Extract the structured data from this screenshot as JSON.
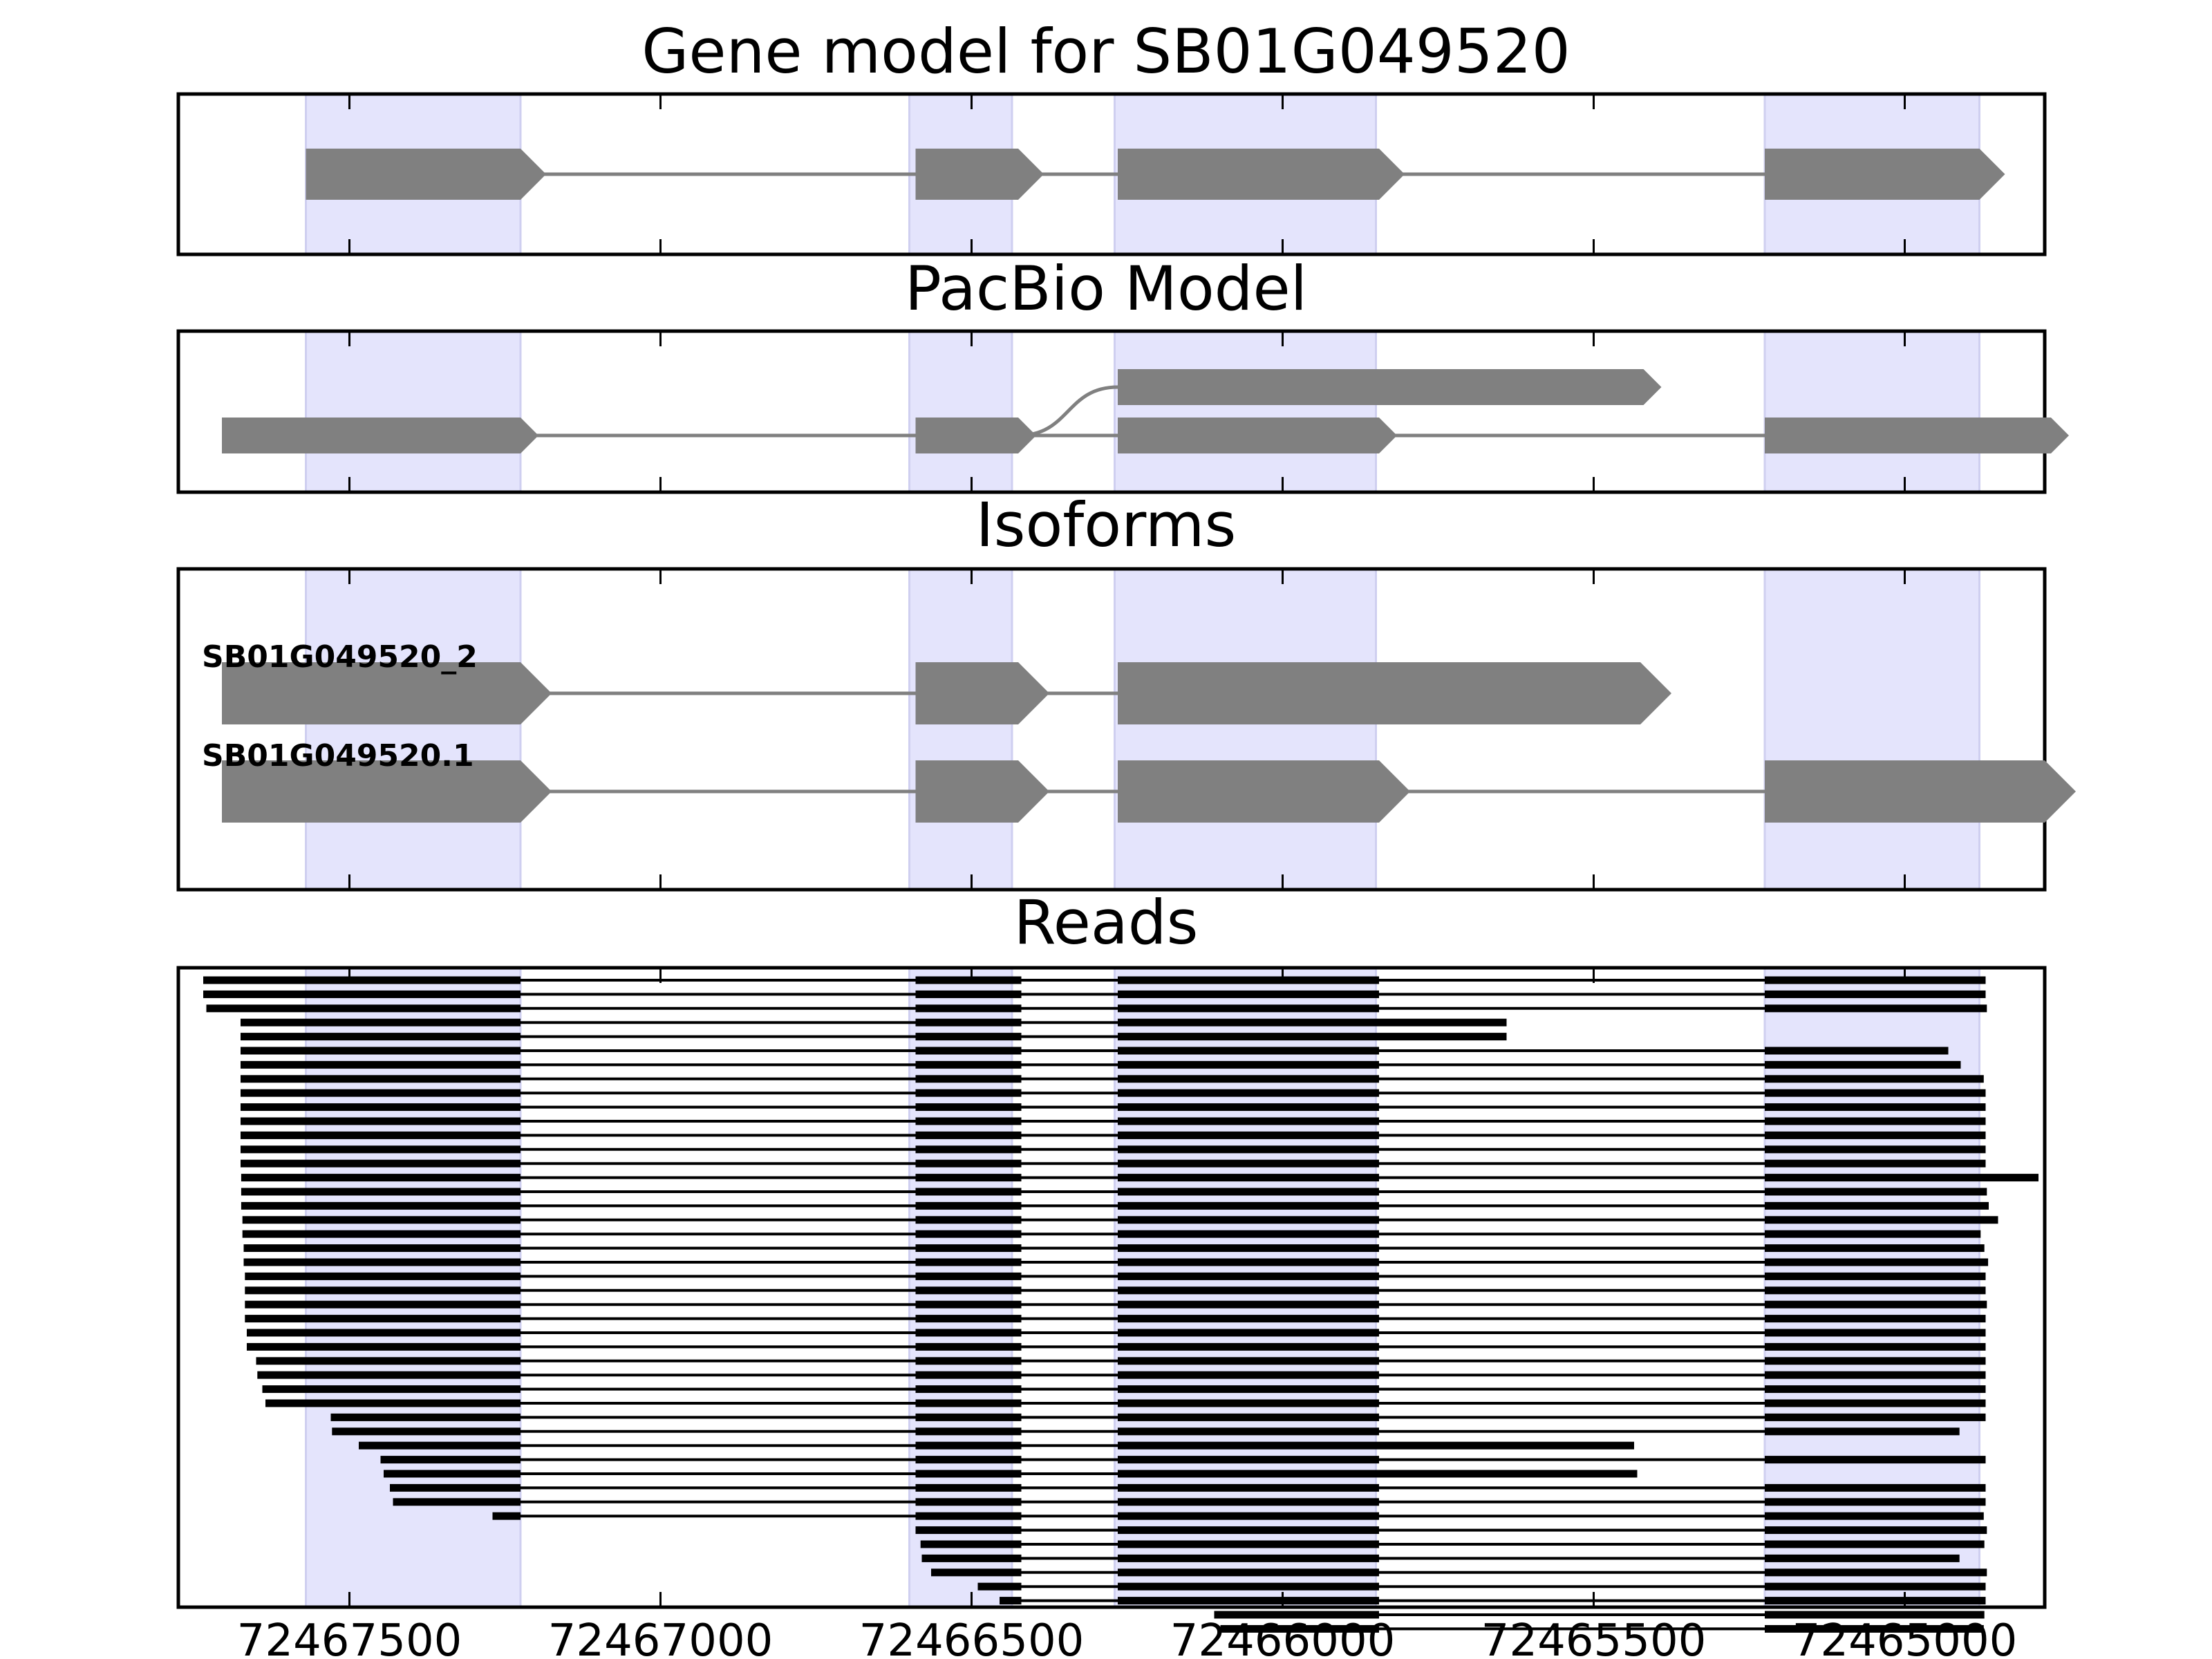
{
  "chart_data": [
    {
      "type": "gene-model",
      "title": "Gene model for SB01G049520",
      "exons": [
        [
          72467570,
          72467225
        ],
        [
          72466590,
          72466425
        ],
        [
          72466265,
          72465845
        ],
        [
          72465225,
          72464880
        ]
      ],
      "introns": [
        [
          72467225,
          72466590
        ],
        [
          72466425,
          72466265
        ],
        [
          72465845,
          72465225
        ]
      ]
    },
    {
      "type": "gene-model",
      "title": "PacBio Model",
      "tracks": [
        {
          "exons": [
            [
              72466265,
              72465420
            ]
          ],
          "join_from": 72466425
        },
        {
          "exons": [
            [
              72467705,
              72467225
            ],
            [
              72466590,
              72466425
            ],
            [
              72466265,
              72465845
            ],
            [
              72465225,
              72464765
            ]
          ]
        }
      ]
    },
    {
      "type": "gene-model",
      "title": "Isoforms",
      "isoforms": [
        {
          "name": "SB01G049520_2",
          "exons": [
            [
              72467705,
              72467225
            ],
            [
              72466590,
              72466425
            ],
            [
              72466265,
              72465425
            ]
          ]
        },
        {
          "name": "SB01G049520.1",
          "exons": [
            [
              72467705,
              72467225
            ],
            [
              72466590,
              72466425
            ],
            [
              72466265,
              72465845
            ],
            [
              72465225,
              72464775
            ]
          ]
        }
      ]
    },
    {
      "type": "reads",
      "title": "Reads",
      "note": "each read = list of aligned blocks [start, end] in genomic coordinates",
      "reads": [
        [
          [
            72467735,
            72467225
          ],
          [
            72466590,
            72466420
          ],
          [
            72466265,
            72465845
          ],
          [
            72465225,
            72464870
          ]
        ],
        [
          [
            72467735,
            72467225
          ],
          [
            72466590,
            72466420
          ],
          [
            72466265,
            72465845
          ],
          [
            72465225,
            72464870
          ]
        ],
        [
          [
            72467730,
            72467225
          ],
          [
            72466590,
            72466420
          ],
          [
            72466265,
            72465845
          ],
          [
            72465225,
            72464868
          ]
        ],
        [
          [
            72467675,
            72467225
          ],
          [
            72466590,
            72466420
          ],
          [
            72466265,
            72465640
          ]
        ],
        [
          [
            72467675,
            72467225
          ],
          [
            72466590,
            72466420
          ],
          [
            72466265,
            72465640
          ]
        ],
        [
          [
            72467675,
            72467225
          ],
          [
            72466590,
            72466420
          ],
          [
            72466265,
            72465845
          ],
          [
            72465225,
            72464930
          ]
        ],
        [
          [
            72467675,
            72467225
          ],
          [
            72466590,
            72466420
          ],
          [
            72466265,
            72465845
          ],
          [
            72465225,
            72464910
          ]
        ],
        [
          [
            72467675,
            72467225
          ],
          [
            72466590,
            72466420
          ],
          [
            72466265,
            72465845
          ],
          [
            72465225,
            72464873
          ]
        ],
        [
          [
            72467675,
            72467225
          ],
          [
            72466590,
            72466420
          ],
          [
            72466265,
            72465845
          ],
          [
            72465225,
            72464870
          ]
        ],
        [
          [
            72467675,
            72467225
          ],
          [
            72466590,
            72466420
          ],
          [
            72466265,
            72465845
          ],
          [
            72465225,
            72464870
          ]
        ],
        [
          [
            72467675,
            72467225
          ],
          [
            72466590,
            72466420
          ],
          [
            72466265,
            72465845
          ],
          [
            72465225,
            72464870
          ]
        ],
        [
          [
            72467675,
            72467225
          ],
          [
            72466590,
            72466420
          ],
          [
            72466265,
            72465845
          ],
          [
            72465225,
            72464870
          ]
        ],
        [
          [
            72467675,
            72467225
          ],
          [
            72466590,
            72466420
          ],
          [
            72466265,
            72465845
          ],
          [
            72465225,
            72464870
          ]
        ],
        [
          [
            72467675,
            72467225
          ],
          [
            72466590,
            72466420
          ],
          [
            72466265,
            72465845
          ],
          [
            72465225,
            72464870
          ]
        ],
        [
          [
            72467674,
            72467225
          ],
          [
            72466590,
            72466420
          ],
          [
            72466265,
            72465845
          ],
          [
            72465225,
            72464785
          ]
        ],
        [
          [
            72467674,
            72467225
          ],
          [
            72466590,
            72466420
          ],
          [
            72466265,
            72465845
          ],
          [
            72465225,
            72464868
          ]
        ],
        [
          [
            72467674,
            72467225
          ],
          [
            72466590,
            72466420
          ],
          [
            72466265,
            72465845
          ],
          [
            72465225,
            72464865
          ]
        ],
        [
          [
            72467672,
            72467225
          ],
          [
            72466590,
            72466420
          ],
          [
            72466265,
            72465845
          ],
          [
            72465225,
            72464850
          ]
        ],
        [
          [
            72467672,
            72467225
          ],
          [
            72466590,
            72466420
          ],
          [
            72466265,
            72465845
          ],
          [
            72465225,
            72464878
          ]
        ],
        [
          [
            72467670,
            72467225
          ],
          [
            72466590,
            72466420
          ],
          [
            72466265,
            72465845
          ],
          [
            72465225,
            72464872
          ]
        ],
        [
          [
            72467670,
            72467225
          ],
          [
            72466590,
            72466420
          ],
          [
            72466265,
            72465845
          ],
          [
            72465225,
            72464866
          ]
        ],
        [
          [
            72467668,
            72467225
          ],
          [
            72466590,
            72466420
          ],
          [
            72466265,
            72465845
          ],
          [
            72465225,
            72464870
          ]
        ],
        [
          [
            72467668,
            72467225
          ],
          [
            72466590,
            72466420
          ],
          [
            72466265,
            72465845
          ],
          [
            72465225,
            72464870
          ]
        ],
        [
          [
            72467668,
            72467225
          ],
          [
            72466590,
            72466420
          ],
          [
            72466265,
            72465845
          ],
          [
            72465225,
            72464868
          ]
        ],
        [
          [
            72467668,
            72467225
          ],
          [
            72466590,
            72466420
          ],
          [
            72466265,
            72465845
          ],
          [
            72465225,
            72464870
          ]
        ],
        [
          [
            72467665,
            72467225
          ],
          [
            72466590,
            72466420
          ],
          [
            72466265,
            72465845
          ],
          [
            72465225,
            72464870
          ]
        ],
        [
          [
            72467665,
            72467225
          ],
          [
            72466590,
            72466420
          ],
          [
            72466265,
            72465845
          ],
          [
            72465225,
            72464870
          ]
        ],
        [
          [
            72467650,
            72467225
          ],
          [
            72466590,
            72466420
          ],
          [
            72466265,
            72465845
          ],
          [
            72465225,
            72464870
          ]
        ],
        [
          [
            72467648,
            72467225
          ],
          [
            72466590,
            72466420
          ],
          [
            72466265,
            72465845
          ],
          [
            72465225,
            72464870
          ]
        ],
        [
          [
            72467640,
            72467225
          ],
          [
            72466590,
            72466420
          ],
          [
            72466265,
            72465845
          ],
          [
            72465225,
            72464870
          ]
        ],
        [
          [
            72467635,
            72467225
          ],
          [
            72466590,
            72466420
          ],
          [
            72466265,
            72465845
          ],
          [
            72465225,
            72464870
          ]
        ],
        [
          [
            72467530,
            72467225
          ],
          [
            72466590,
            72466420
          ],
          [
            72466265,
            72465845
          ],
          [
            72465225,
            72464870
          ]
        ],
        [
          [
            72467528,
            72467225
          ],
          [
            72466590,
            72466420
          ],
          [
            72466265,
            72465845
          ],
          [
            72465225,
            72464912
          ]
        ],
        [
          [
            72467485,
            72467225
          ],
          [
            72466590,
            72466420
          ],
          [
            72466265,
            72465435
          ]
        ],
        [
          [
            72467450,
            72467225
          ],
          [
            72466590,
            72466420
          ],
          [
            72466265,
            72465845
          ],
          [
            72465225,
            72464870
          ]
        ],
        [
          [
            72467445,
            72467225
          ],
          [
            72466590,
            72466420
          ],
          [
            72466265,
            72465430
          ]
        ],
        [
          [
            72467435,
            72467225
          ],
          [
            72466590,
            72466420
          ],
          [
            72466265,
            72465845
          ],
          [
            72465225,
            72464870
          ]
        ],
        [
          [
            72467430,
            72467225
          ],
          [
            72466590,
            72466420
          ],
          [
            72466265,
            72465845
          ],
          [
            72465225,
            72464870
          ]
        ],
        [
          [
            72467270,
            72467225
          ],
          [
            72466590,
            72466420
          ],
          [
            72466265,
            72465845
          ],
          [
            72465225,
            72464873
          ]
        ],
        [
          [
            72466590,
            72466420
          ],
          [
            72466265,
            72465845
          ],
          [
            72465225,
            72464868
          ]
        ],
        [
          [
            72466582,
            72466420
          ],
          [
            72466265,
            72465845
          ],
          [
            72465225,
            72464872
          ]
        ],
        [
          [
            72466580,
            72466420
          ],
          [
            72466265,
            72465845
          ],
          [
            72465225,
            72464912
          ]
        ],
        [
          [
            72466565,
            72466420
          ],
          [
            72466265,
            72465845
          ],
          [
            72465225,
            72464868
          ]
        ],
        [
          [
            72466490,
            72466420
          ],
          [
            72466265,
            72465845
          ],
          [
            72465225,
            72464870
          ]
        ],
        [
          [
            72466455,
            72466420
          ],
          [
            72466265,
            72465845
          ],
          [
            72465225,
            72464870
          ]
        ],
        [
          [
            72466110,
            72465845
          ],
          [
            72465225,
            72464872
          ]
        ],
        [
          [
            72466100,
            72465845
          ],
          [
            72465225,
            72464873
          ]
        ]
      ]
    }
  ],
  "axis": {
    "xlim": [
      72467775,
      72464775
    ],
    "inverted": true,
    "tick_values": [
      72467500,
      72467000,
      72466500,
      72466000,
      72465500,
      72465000
    ],
    "tick_labels": [
      "72467500",
      "72467000",
      "72466500",
      "72466000",
      "72465500",
      "72465000"
    ]
  },
  "highlight_regions": [
    [
      72467570,
      72467225
    ],
    [
      72466600,
      72466435
    ],
    [
      72466270,
      72465850
    ],
    [
      72465225,
      72464880
    ]
  ],
  "colors": {
    "exon": "#808080",
    "read": "#000000",
    "highlight": "#e4e4fc"
  }
}
